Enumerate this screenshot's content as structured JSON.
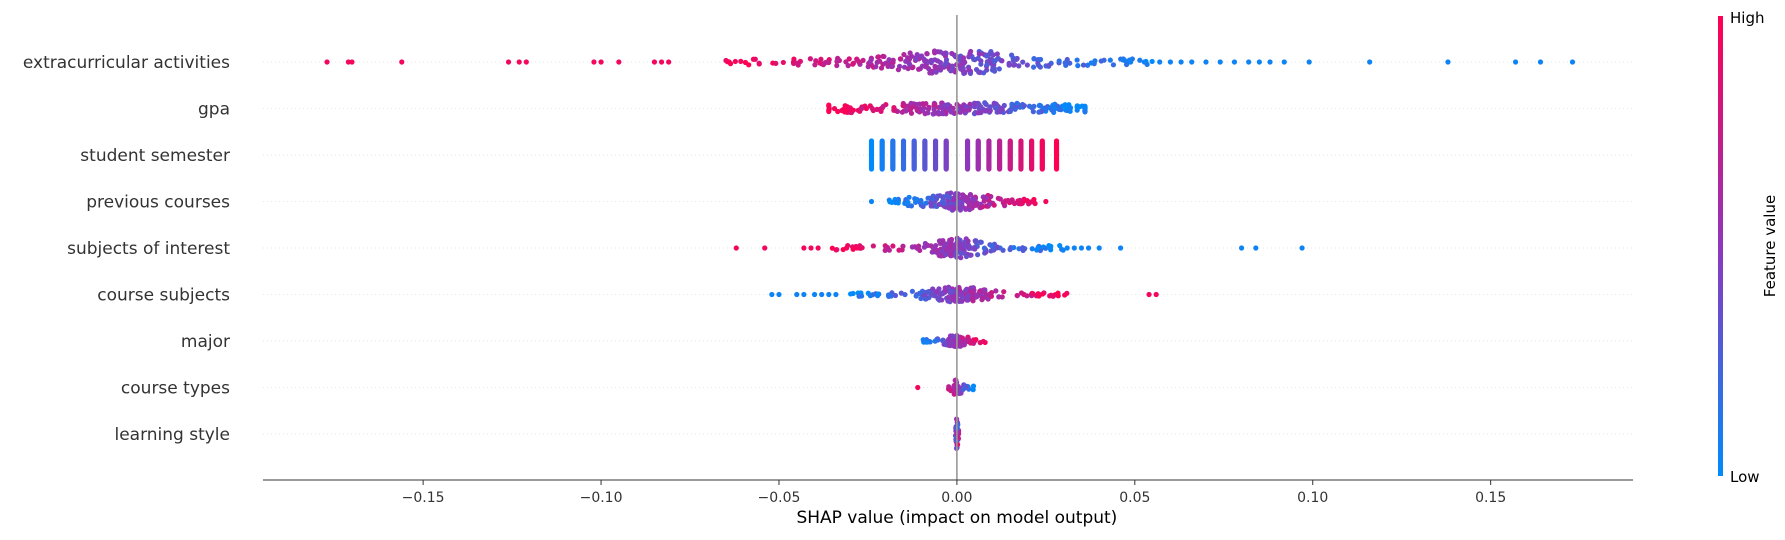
{
  "chart_data": {
    "type": "scatter",
    "subtype": "shap-beeswarm",
    "xlabel": "SHAP value (impact on model output)",
    "xlim": [
      -0.195,
      0.19
    ],
    "xticks": [
      -0.15,
      -0.1,
      -0.05,
      0.0,
      0.05,
      0.1,
      0.15
    ],
    "xtick_labels": [
      "−0.15",
      "−0.10",
      "−0.05",
      "0.00",
      "0.05",
      "0.10",
      "0.15"
    ],
    "grid": false,
    "colorbar": {
      "label": "Feature value",
      "high_label": "High",
      "low_label": "Low",
      "low_color": "#008bfb",
      "high_color": "#ff0052",
      "placement": "right"
    },
    "zero_line_color": "#999999",
    "features": [
      {
        "name": "extracurricular activities",
        "range": [
          -0.065,
          0.055
        ],
        "density": 280,
        "spread": 0.022,
        "trend": "high-left",
        "jitter": 12,
        "outliers_low": [
          -0.177,
          -0.171,
          -0.17,
          -0.156,
          -0.126,
          -0.123,
          -0.121,
          -0.102,
          -0.1,
          -0.095,
          -0.085,
          -0.083,
          -0.081
        ],
        "outliers_high": [
          0.057,
          0.06,
          0.063,
          0.066,
          0.07,
          0.074,
          0.078,
          0.082,
          0.085,
          0.088,
          0.092,
          0.099,
          0.116,
          0.138,
          0.157,
          0.164,
          0.173
        ]
      },
      {
        "name": "gpa",
        "range": [
          -0.036,
          0.036
        ],
        "density": 240,
        "spread": 0.04,
        "trend": "high-left",
        "jitter": 6,
        "outliers_low": [],
        "outliers_high": []
      },
      {
        "name": "student semester",
        "columns": [
          -0.024,
          -0.021,
          -0.018,
          -0.015,
          -0.012,
          -0.009,
          -0.006,
          -0.003,
          0.003,
          0.006,
          0.009,
          0.012,
          0.015,
          0.018,
          0.021,
          0.024,
          0.028
        ],
        "trend": "high-right",
        "jitter": 14
      },
      {
        "name": "previous courses",
        "range": [
          -0.019,
          0.023
        ],
        "density": 180,
        "spread": 0.012,
        "trend": "high-right",
        "jitter": 9,
        "outliers_low": [
          -0.024
        ],
        "outliers_high": [
          0.025
        ]
      },
      {
        "name": "subjects of interest",
        "range": [
          -0.035,
          0.03
        ],
        "density": 170,
        "spread": 0.008,
        "trend": "high-left",
        "jitter": 10,
        "outliers_low": [
          -0.062,
          -0.054,
          -0.043,
          -0.041,
          -0.039,
          -0.031,
          -0.028
        ],
        "outliers_high": [
          0.031,
          0.033,
          0.035,
          0.037,
          0.04,
          0.046,
          0.08,
          0.084,
          0.097
        ]
      },
      {
        "name": "course subjects",
        "range": [
          -0.03,
          0.031
        ],
        "density": 180,
        "spread": 0.01,
        "trend": "high-right",
        "jitter": 8,
        "outliers_low": [
          -0.052,
          -0.05,
          -0.045,
          -0.043,
          -0.04,
          -0.038,
          -0.036,
          -0.034
        ],
        "outliers_high": [
          0.054,
          0.056
        ]
      },
      {
        "name": "major",
        "range": [
          -0.01,
          0.008
        ],
        "density": 90,
        "spread": 0.004,
        "trend": "high-right",
        "jitter": 6,
        "outliers_low": [],
        "outliers_high": []
      },
      {
        "name": "course types",
        "range": [
          -0.004,
          0.005
        ],
        "density": 40,
        "spread": 0.0015,
        "trend": "high-left",
        "jitter": 9,
        "outliers_low": [
          -0.011
        ],
        "outliers_high": []
      },
      {
        "name": "learning style",
        "range": [
          -0.0005,
          0.0005
        ],
        "density": 40,
        "spread": 0.0003,
        "trend": "mixed",
        "jitter": 16,
        "outliers_low": [],
        "outliers_high": []
      }
    ]
  }
}
